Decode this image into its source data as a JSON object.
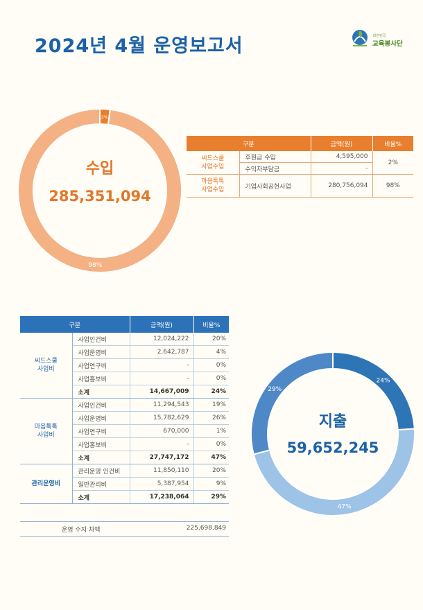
{
  "title": "2024년 4월 운영보고서",
  "logo": {
    "line1": "대한민국",
    "line2": "교육봉사단",
    "icon": "hands-leaf-icon"
  },
  "income": {
    "label": "수입",
    "total": "285,351,094",
    "slice_labels": [
      "2%",
      "98%"
    ],
    "colors": {
      "main": "#f4b183",
      "accent": "#e87f2e",
      "text": "#e2772a"
    },
    "table": {
      "headers": [
        "구분",
        "금액(원)",
        "비율%"
      ],
      "groups": [
        {
          "name_line1": "씨드스쿨",
          "name_line2": "사업수입",
          "pct": "2%",
          "rows": [
            {
              "item": "후원금 수입",
              "amount": "4,595,000"
            },
            {
              "item": "수익자부담금",
              "amount": "-"
            }
          ]
        },
        {
          "name_line1": "마음톡톡",
          "name_line2": "사업수입",
          "pct": "98%",
          "rows": [
            {
              "item": "기업사회공헌사업",
              "amount": "280,756,094"
            }
          ]
        }
      ]
    }
  },
  "expense": {
    "label": "지출",
    "total": "59,652,245",
    "slice_labels": [
      "24%",
      "47%",
      "29%"
    ],
    "colors": {
      "s1": "#2e75b6",
      "s2": "#9dc3e6",
      "s3": "#4f88c6",
      "text": "#1c62a8"
    },
    "table": {
      "headers": [
        "구분",
        "금액(원)",
        "비율%"
      ],
      "groups": [
        {
          "name_line1": "씨드스쿨",
          "name_line2": "사업비",
          "rows": [
            {
              "item": "사업인건비",
              "amount": "12,024,222",
              "pct": "20%"
            },
            {
              "item": "사업운영비",
              "amount": "2,642,787",
              "pct": "4%"
            },
            {
              "item": "사업연구비",
              "amount": "-",
              "pct": "0%"
            },
            {
              "item": "사업홍보비",
              "amount": "-",
              "pct": "0%"
            }
          ],
          "subtotal": {
            "item": "소계",
            "amount": "14,667,009",
            "pct": "24%"
          }
        },
        {
          "name_line1": "마음톡톡",
          "name_line2": "사업비",
          "rows": [
            {
              "item": "사업인건비",
              "amount": "11,294,543",
              "pct": "19%"
            },
            {
              "item": "사업운영비",
              "amount": "15,782,629",
              "pct": "26%"
            },
            {
              "item": "사업연구비",
              "amount": "670,000",
              "pct": "1%"
            },
            {
              "item": "사업홍보비",
              "amount": "-",
              "pct": "0%"
            }
          ],
          "subtotal": {
            "item": "소계",
            "amount": "27,747,172",
            "pct": "47%"
          }
        },
        {
          "name_line1": "관리운영비",
          "name_line2": "",
          "rows": [
            {
              "item": "관리운영 인건비",
              "amount": "11,850,110",
              "pct": "20%"
            },
            {
              "item": "일반관리비",
              "amount": "5,387,954",
              "pct": "9%"
            }
          ],
          "subtotal": {
            "item": "소계",
            "amount": "17,238,064",
            "pct": "29%"
          }
        }
      ]
    },
    "net": {
      "label": "운영 수지 차액",
      "value": "225,698,849"
    }
  },
  "chart_data": [
    {
      "type": "pie",
      "categories": [
        "씨드스쿨 사업수입",
        "마음톡톡 사업수입"
      ],
      "values": [
        2,
        98
      ]
    },
    {
      "type": "pie",
      "categories": [
        "씨드스쿨 사업비",
        "마음톡톡 사업비",
        "관리운영비"
      ],
      "values": [
        24,
        47,
        29
      ]
    }
  ]
}
